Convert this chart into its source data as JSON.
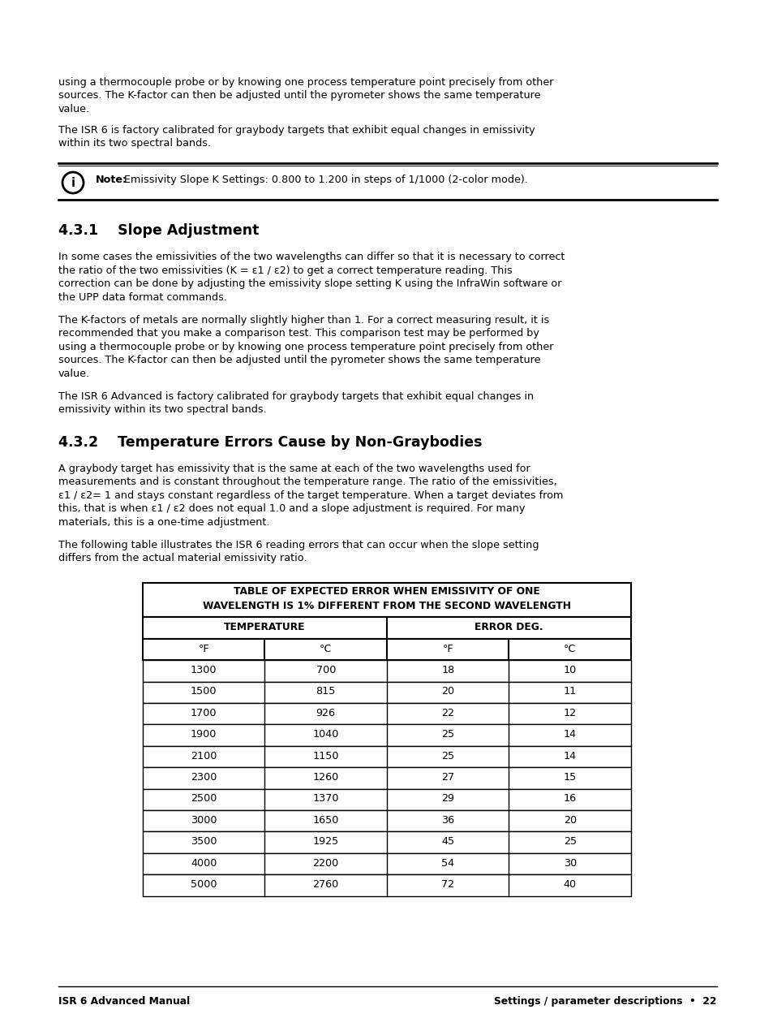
{
  "page_bg": "#ffffff",
  "body_font_size": 9.2,
  "heading_font_size": 12.5,
  "footer_font_size": 8.8,
  "top_intro_lines": [
    "using a thermocouple probe or by knowing one process temperature point precisely from other",
    "sources. The K-factor can then be adjusted until the pyrometer shows the same temperature",
    "value."
  ],
  "top_intro2_lines": [
    "The ISR 6 is factory calibrated for graybody targets that exhibit equal changes in emissivity",
    "within its two spectral bands."
  ],
  "note_text_bold": "Note:",
  "note_text": " Emissivity Slope K Settings: 0.800 to 1.200 in steps of 1/1000 (2-color mode).",
  "section1_heading": "4.3.1    Slope Adjustment",
  "section1_para1_lines": [
    "In some cases the emissivities of the two wavelengths can differ so that it is necessary to correct",
    "the ratio of the two emissivities (K = ε1 / ε2) to get a correct temperature reading. This",
    "correction can be done by adjusting the emissivity slope setting K using the InfraWin software or",
    "the UPP data format commands."
  ],
  "section1_para2_lines": [
    "The K-factors of metals are normally slightly higher than 1. For a correct measuring result, it is",
    "recommended that you make a comparison test. This comparison test may be performed by",
    "using a thermocouple probe or by knowing one process temperature point precisely from other",
    "sources. The K-factor can then be adjusted until the pyrometer shows the same temperature",
    "value."
  ],
  "section1_para3_lines": [
    "The ISR 6 Advanced is factory calibrated for graybody targets that exhibit equal changes in",
    "emissivity within its two spectral bands."
  ],
  "section2_heading": "4.3.2    Temperature Errors Cause by Non-Graybodies",
  "section2_para1_lines": [
    "A graybody target has emissivity that is the same at each of the two wavelengths used for",
    "measurements and is constant throughout the temperature range. The ratio of the emissivities,",
    "ε1 / ε2= 1 and stays constant regardless of the target temperature. When a target deviates from",
    "this, that is when ε1 / ε2 does not equal 1.0 and a slope adjustment is required. For many",
    "materials, this is a one-time adjustment."
  ],
  "section2_para2_lines": [
    "The following table illustrates the ISR 6 reading errors that can occur when the slope setting",
    "differs from the actual material emissivity ratio."
  ],
  "table_title1": "TABLE OF EXPECTED ERROR WHEN EMISSIVITY OF ONE",
  "table_title2": "WAVELENGTH IS 1% DIFFERENT FROM THE SECOND WAVELENGTH",
  "table_col_headers": [
    "TEMPERATURE",
    "ERROR DEG."
  ],
  "table_sub_headers": [
    "°F",
    "°C",
    "°F",
    "°C"
  ],
  "table_data": [
    [
      "1300",
      "700",
      "18",
      "10"
    ],
    [
      "1500",
      "815",
      "20",
      "11"
    ],
    [
      "1700",
      "926",
      "22",
      "12"
    ],
    [
      "1900",
      "1040",
      "25",
      "14"
    ],
    [
      "2100",
      "1150",
      "25",
      "14"
    ],
    [
      "2300",
      "1260",
      "27",
      "15"
    ],
    [
      "2500",
      "1370",
      "29",
      "16"
    ],
    [
      "3000",
      "1650",
      "36",
      "20"
    ],
    [
      "3500",
      "1925",
      "45",
      "25"
    ],
    [
      "4000",
      "2200",
      "54",
      "30"
    ],
    [
      "5000",
      "2760",
      "72",
      "40"
    ]
  ],
  "footer_left": "ISR 6 Advanced Manual",
  "footer_right": "Settings / parameter descriptions  •  22"
}
